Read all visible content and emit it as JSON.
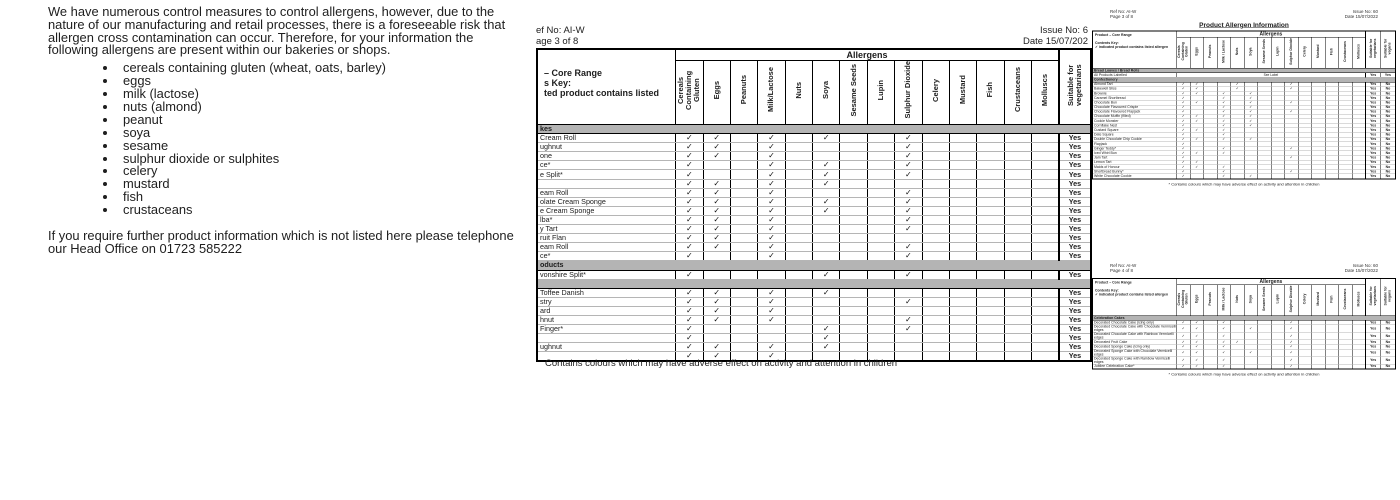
{
  "glyphs": {
    "check": "✓"
  },
  "left_text": {
    "paragraph1": "We have numerous control measures to control allergens, however, due to the nature of our manufacturing and retail processes, there is a foreseeable risk that allergen cross contamination can occur. Therefore, for your information the following allergens are present within our bakeries or shops.",
    "bullets": [
      "cereals containing gluten (wheat, oats, barley)",
      "eggs",
      "milk (lactose)",
      "nuts (almond)",
      "peanut",
      "soya",
      "sesame",
      "sulphur dioxide or sulphites",
      "celery",
      "mustard",
      "fish",
      "crustaceans"
    ],
    "paragraph2": "If you require further product information which is not listed here please telephone our Head Office on 01723 585222"
  },
  "middle_doc": {
    "ref_no": "ef No: AI-W",
    "page_no": "age 3 of 8",
    "issue_no": "Issue No: 6",
    "date": "Date 15/07/202",
    "footnote": "Contains colours which may have adverse effect on activity and attention in children",
    "table": {
      "allergens_header": "Allergens",
      "key_lines": [
        "– Core Range",
        "s Key:",
        "ted product contains listed"
      ],
      "columns": [
        "Cereals Containing Gluten",
        "Eggs",
        "Peanuts",
        "Milk/Lactose",
        "Nuts",
        "Soya",
        "Sesame Seeds",
        "Lupin",
        "Sulphur Dioxide",
        "Celery",
        "Mustard",
        "Fish",
        "Crustaceans",
        "Molluscs"
      ],
      "suitability_columns": [
        "Suitable for vegetarians"
      ],
      "rows": [
        {
          "type": "section",
          "label": "kes"
        },
        {
          "type": "item",
          "label": "Cream Roll",
          "checks": [
            0,
            1,
            3,
            5,
            8
          ],
          "suit": [
            "Yes"
          ]
        },
        {
          "type": "item",
          "label": "ughnut",
          "checks": [
            0,
            1,
            3,
            8
          ],
          "suit": [
            "Yes"
          ]
        },
        {
          "type": "item",
          "label": "one",
          "checks": [
            0,
            1,
            3,
            8
          ],
          "suit": [
            "Yes"
          ]
        },
        {
          "type": "item",
          "label": "ce*",
          "checks": [
            0,
            3,
            5,
            8
          ],
          "suit": [
            "Yes"
          ]
        },
        {
          "type": "item",
          "label": "e Split*",
          "checks": [
            0,
            3,
            5,
            8
          ],
          "suit": [
            "Yes"
          ]
        },
        {
          "type": "item",
          "label": "",
          "checks": [
            0,
            1,
            3,
            5
          ],
          "suit": [
            "Yes"
          ]
        },
        {
          "type": "item",
          "label": "eam Roll",
          "checks": [
            0,
            1,
            3,
            8
          ],
          "suit": [
            "Yes"
          ]
        },
        {
          "type": "item",
          "label": "olate Cream Sponge",
          "checks": [
            0,
            1,
            3,
            5,
            8
          ],
          "suit": [
            "Yes"
          ]
        },
        {
          "type": "item",
          "label": "e Cream Sponge",
          "checks": [
            0,
            1,
            3,
            5,
            8
          ],
          "suit": [
            "Yes"
          ]
        },
        {
          "type": "item",
          "label": "lba*",
          "checks": [
            0,
            1,
            3,
            8
          ],
          "suit": [
            "Yes"
          ]
        },
        {
          "type": "item",
          "label": "y Tart",
          "checks": [
            0,
            1,
            3,
            8
          ],
          "suit": [
            "Yes"
          ]
        },
        {
          "type": "item",
          "label": "ruit Flan",
          "checks": [
            0,
            1,
            3
          ],
          "suit": [
            "Yes"
          ]
        },
        {
          "type": "item",
          "label": "eam Roll",
          "checks": [
            0,
            1,
            3,
            8
          ],
          "suit": [
            "Yes"
          ]
        },
        {
          "type": "item",
          "label": "ce*",
          "checks": [
            0,
            3,
            8
          ],
          "suit": [
            "Yes"
          ]
        },
        {
          "type": "section",
          "label": "oducts"
        },
        {
          "type": "item",
          "label": "vonshire Split*",
          "checks": [
            0,
            5,
            8
          ],
          "suit": [
            "Yes"
          ]
        },
        {
          "type": "section",
          "label": ""
        },
        {
          "type": "item",
          "label": "Toffee Danish",
          "checks": [
            0,
            1,
            3,
            5
          ],
          "suit": [
            "Yes"
          ]
        },
        {
          "type": "item",
          "label": "stry",
          "checks": [
            0,
            1,
            3,
            8
          ],
          "suit": [
            "Yes"
          ]
        },
        {
          "type": "item",
          "label": "ard",
          "checks": [
            0,
            1,
            3
          ],
          "suit": [
            "Yes"
          ]
        },
        {
          "type": "item",
          "label": "hnut",
          "checks": [
            0,
            1,
            3,
            8
          ],
          "suit": [
            "Yes"
          ]
        },
        {
          "type": "item",
          "label": "Finger*",
          "checks": [
            0,
            5,
            8
          ],
          "suit": [
            "Yes"
          ]
        },
        {
          "type": "item",
          "label": "",
          "checks": [
            0,
            5
          ],
          "suit": [
            "Yes"
          ]
        },
        {
          "type": "item",
          "label": "ughnut",
          "checks": [
            0,
            1,
            3,
            5
          ],
          "suit": [
            "Yes"
          ]
        },
        {
          "type": "item",
          "label": "",
          "checks": [
            0,
            1,
            3
          ],
          "suit": [
            "Yes"
          ]
        }
      ]
    }
  },
  "right_docs": [
    {
      "ref_no": "Ref No: AI-W",
      "page_no": "Page 3 of 8",
      "issue_no": "Issue No: 60",
      "date": "Date 15/07/2022",
      "title": "Product Allergen Information",
      "footnote": "* Contains colours which may have adverse effect on activity and attention in children",
      "table": {
        "allergens_header": "Allergens",
        "key_lines": [
          "Product – Core Range",
          "Contents Key:",
          "✓ indicated product contains listed allergen"
        ],
        "columns": [
          "Cereals Containing Gluten",
          "Eggs",
          "Peanuts",
          "Milk / Lactose",
          "Nuts",
          "Soya",
          "Sesame Seeds",
          "Lupin",
          "Sulphur Dioxide",
          "Celery",
          "Mustard",
          "Fish",
          "Crustaceans",
          "Molluscs"
        ],
        "suitability_columns": [
          "Suitable for vegetarians",
          "Suitable for vegans"
        ],
        "rows": [
          {
            "type": "section",
            "label": "Bread Loaves / Bread Rolls"
          },
          {
            "type": "item",
            "label": "All Products Labelled",
            "see_label": "See Label",
            "suit": [
              "Yes",
              "Yes"
            ]
          },
          {
            "type": "section",
            "label": "Confectionery"
          },
          {
            "type": "item",
            "label": "Almond Tart",
            "checks": [
              0,
              1,
              4,
              8
            ],
            "suit": [
              "Yes",
              "No"
            ]
          },
          {
            "type": "item",
            "label": "Bakewell Slice",
            "checks": [
              0,
              1,
              4,
              8
            ],
            "suit": [
              "Yes",
              "No"
            ]
          },
          {
            "type": "item",
            "label": "Brownie",
            "checks": [
              0,
              1,
              3,
              5
            ],
            "suit": [
              "Yes",
              "No"
            ]
          },
          {
            "type": "item",
            "label": "Caramel Shortbread",
            "checks": [
              0,
              3,
              5
            ],
            "suit": [
              "Yes",
              "No"
            ]
          },
          {
            "type": "item",
            "label": "Chocolate Bun",
            "checks": [
              0,
              1,
              3,
              5,
              8
            ],
            "suit": [
              "Yes",
              "No"
            ]
          },
          {
            "type": "item",
            "label": "Chocolate Flavoured Crispie",
            "checks": [
              0,
              3,
              5
            ],
            "suit": [
              "Yes",
              "No"
            ]
          },
          {
            "type": "item",
            "label": "Chocolate Flavoured Flapjack",
            "checks": [
              0,
              3,
              5,
              8
            ],
            "suit": [
              "Yes",
              "No"
            ]
          },
          {
            "type": "item",
            "label": "Chocolate Muffin (filled)",
            "checks": [
              0,
              1,
              3,
              5
            ],
            "suit": [
              "Yes",
              "No"
            ]
          },
          {
            "type": "item",
            "label": "Cookie Monster",
            "checks": [
              0,
              1,
              3,
              5
            ],
            "suit": [
              "Yes",
              "No"
            ]
          },
          {
            "type": "item",
            "label": "Cornflake Nest",
            "checks": [
              0,
              3,
              5
            ],
            "suit": [
              "Yes",
              "No"
            ]
          },
          {
            "type": "item",
            "label": "Custard Square",
            "checks": [
              0,
              1,
              3
            ],
            "suit": [
              "Yes",
              "No"
            ]
          },
          {
            "type": "item",
            "label": "Date Square",
            "checks": [
              0,
              3
            ],
            "suit": [
              "Yes",
              "No"
            ]
          },
          {
            "type": "item",
            "label": "Double Chocolate Chip Cookie",
            "checks": [
              0,
              1,
              3,
              5
            ],
            "suit": [
              "Yes",
              "No"
            ]
          },
          {
            "type": "item",
            "label": "Flapjack",
            "checks": [
              0
            ],
            "suit": [
              "Yes",
              "No"
            ]
          },
          {
            "type": "item",
            "label": "Ginger Teddy*",
            "checks": [
              0,
              3,
              8
            ],
            "suit": [
              "Yes",
              "No"
            ]
          },
          {
            "type": "item",
            "label": "Iced Whirl Bun",
            "checks": [
              0,
              1,
              3
            ],
            "suit": [
              "Yes",
              "No"
            ]
          },
          {
            "type": "item",
            "label": "Jam Tart",
            "checks": [
              0,
              8
            ],
            "suit": [
              "Yes",
              "No"
            ]
          },
          {
            "type": "item",
            "label": "Lemon Tart",
            "checks": [
              0,
              1
            ],
            "suit": [
              "Yes",
              "No"
            ]
          },
          {
            "type": "item",
            "label": "Maids of Honour",
            "checks": [
              0,
              1,
              3
            ],
            "suit": [
              "Yes",
              "No"
            ]
          },
          {
            "type": "item",
            "label": "Shortbread Bunny*",
            "checks": [
              0,
              3,
              8
            ],
            "suit": [
              "Yes",
              "No"
            ]
          },
          {
            "type": "item",
            "label": "White Chocolate Cookie",
            "checks": [
              0,
              3,
              5
            ],
            "suit": [
              "Yes",
              "No"
            ]
          }
        ]
      }
    },
    {
      "ref_no": "Ref No: AI-W",
      "page_no": "Page 4 of 8",
      "issue_no": "Issue No: 60",
      "date": "Date 15/07/2022",
      "title": "",
      "footnote": "* Contains colours which may have adverse effect on activity and attention in children",
      "table": {
        "allergens_header": "Allergens",
        "key_lines": [
          "Product – Core Range",
          "Contents Key:",
          "✓ indicated product contains listed allergen"
        ],
        "columns": [
          "Cereals Containing Gluten",
          "Eggs",
          "Peanuts",
          "Milk / Lactose",
          "Nuts",
          "Soya",
          "Sesame Seeds",
          "Lupin",
          "Sulphur Dioxide",
          "Celery",
          "Mustard",
          "Fish",
          "Crustaceans",
          "Molluscs"
        ],
        "suitability_columns": [
          "Suitable for vegetarians",
          "Suitable for vegans"
        ],
        "rows": [
          {
            "type": "section",
            "label": "Celebration Cakes"
          },
          {
            "type": "item",
            "label": "Decorated Chocolate Cake (icing only)",
            "checks": [
              0,
              1,
              3,
              8
            ],
            "suit": [
              "Yes",
              "No"
            ]
          },
          {
            "type": "item",
            "label": "Decorated Chocolate Cake with Chocolate Vermicelli edges",
            "checks": [
              0,
              1,
              3,
              5,
              8
            ],
            "suit": [
              "Yes",
              "No"
            ]
          },
          {
            "type": "item",
            "label": "Decorated Chocolate Cake with Rainbow Vermicelli edges",
            "checks": [
              0,
              1,
              3,
              8
            ],
            "suit": [
              "Yes",
              "No"
            ]
          },
          {
            "type": "item",
            "label": "Decorated Fruit Cake",
            "checks": [
              0,
              1,
              3,
              4,
              8
            ],
            "suit": [
              "Yes",
              "No"
            ]
          },
          {
            "type": "item",
            "label": "Decorated Sponge Cake (icing only)",
            "checks": [
              0,
              1,
              3,
              8
            ],
            "suit": [
              "Yes",
              "No"
            ]
          },
          {
            "type": "item",
            "label": "Decorated Sponge Cake with Chocolate Vermicelli edges",
            "checks": [
              0,
              1,
              3,
              5,
              8
            ],
            "suit": [
              "Yes",
              "No"
            ]
          },
          {
            "type": "item",
            "label": "Decorated Sponge Cake with Rainbow Vermicelli edges",
            "checks": [
              0,
              1,
              3,
              8
            ],
            "suit": [
              "Yes",
              "No"
            ]
          },
          {
            "type": "item",
            "label": "Jubilee Celebration Cake*",
            "checks": [
              0,
              1,
              3,
              8
            ],
            "suit": [
              "Yes",
              "No"
            ]
          }
        ]
      }
    }
  ]
}
